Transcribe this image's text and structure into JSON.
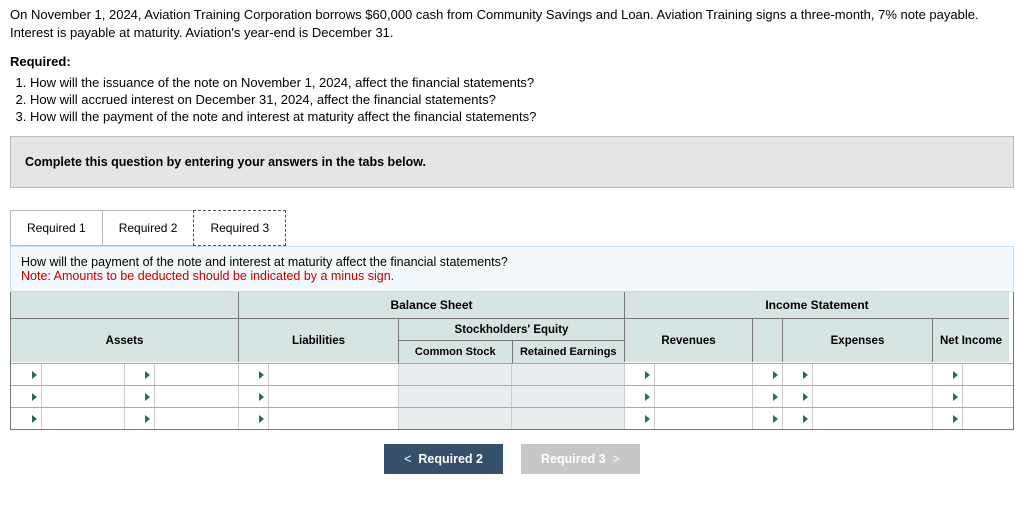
{
  "intro": "On November 1, 2024, Aviation Training Corporation borrows $60,000 cash from Community Savings and Loan. Aviation Training signs a three-month, 7% note payable. Interest is payable at maturity. Aviation's year-end is December 31.",
  "required_label": "Required:",
  "requirements": [
    "How will the issuance of the note on November 1, 2024, affect the financial statements?",
    "How will accrued interest on December 31, 2024, affect the financial statements?",
    "How will the payment of the note and interest at maturity affect the financial statements?"
  ],
  "instruction_bar": "Complete this question by entering your answers in the tabs below.",
  "tabs": [
    "Required 1",
    "Required 2",
    "Required 3"
  ],
  "active_tab": 2,
  "question_line": "How will the payment of the note and interest at maturity affect the financial statements?",
  "note_line": "Note: Amounts to be deducted should be indicated by a minus sign.",
  "headers": {
    "balance_sheet": "Balance Sheet",
    "income_statement": "Income Statement",
    "assets": "Assets",
    "liabilities": "Liabilities",
    "stockholders_equity": "Stockholders' Equity",
    "common_stock": "Common Stock",
    "retained_earnings": "Retained Earnings",
    "revenues": "Revenues",
    "expenses": "Expenses",
    "net_income": "Net Income"
  },
  "nav": {
    "prev": "Required 2",
    "next": "Required 3"
  },
  "colors": {
    "tab_bg": "#ffffff",
    "graybox_bg": "#e5e5e5",
    "question_bg": "#f4f9fd",
    "header_bg": "#d7e4e4",
    "nav_prev": "#35506a",
    "nav_next": "#c7c7c7",
    "note_color": "#c00000",
    "triangle": "#2b6b5e"
  }
}
